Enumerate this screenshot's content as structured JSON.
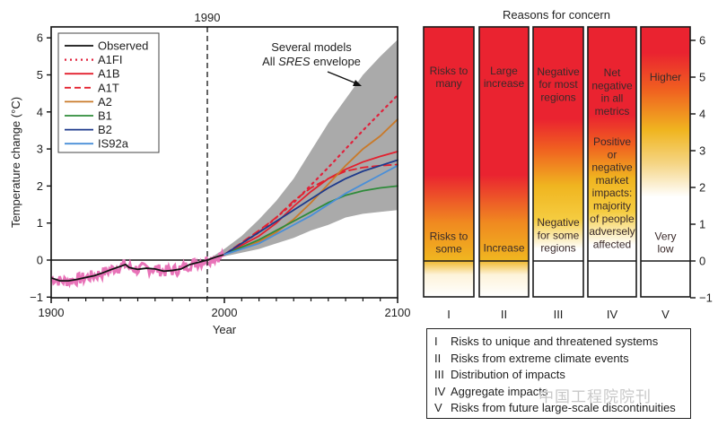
{
  "chart_data": [
    {
      "type": "line",
      "title": "",
      "xlabel": "Year",
      "ylabel": "Temperature change (°C)",
      "xlim": [
        1900,
        2100
      ],
      "ylim": [
        -1,
        6.3
      ],
      "x_ticks": [
        1900,
        2000,
        2100
      ],
      "y_ticks": [
        -1,
        0,
        1,
        2,
        3,
        4,
        5,
        6
      ],
      "y_tick_labels": [
        "−1",
        "0",
        "1",
        "2",
        "3",
        "4",
        "5",
        "6"
      ],
      "grid": false,
      "legend_position": "top-left",
      "reference_line": {
        "x": 1990,
        "label": "1990",
        "style": "dashed"
      },
      "annotation": {
        "line1": "Several models",
        "line2_prefix": "All ",
        "line2_italic": "SRES",
        "line2_suffix": " envelope"
      },
      "envelope": {
        "name": "Several models All SRES envelope",
        "color": "#aaaaaa",
        "x": [
          1990,
          2000,
          2010,
          2020,
          2030,
          2040,
          2050,
          2060,
          2070,
          2080,
          2090,
          2100
        ],
        "upper": [
          0.0,
          0.3,
          0.65,
          1.1,
          1.6,
          2.2,
          2.95,
          3.7,
          4.35,
          5.0,
          5.5,
          5.95
        ],
        "lower": [
          0.0,
          0.1,
          0.2,
          0.3,
          0.45,
          0.6,
          0.8,
          0.95,
          1.15,
          1.25,
          1.3,
          1.35
        ]
      },
      "observed": {
        "name": "Observed",
        "color": "#111111",
        "annual_color": "#e873b8",
        "x": [
          1900,
          1905,
          1910,
          1915,
          1920,
          1925,
          1930,
          1935,
          1940,
          1943,
          1945,
          1950,
          1955,
          1960,
          1965,
          1970,
          1975,
          1980,
          1985,
          1990,
          1995,
          2000
        ],
        "y": [
          -0.48,
          -0.56,
          -0.56,
          -0.52,
          -0.47,
          -0.42,
          -0.34,
          -0.25,
          -0.17,
          -0.12,
          -0.2,
          -0.25,
          -0.22,
          -0.24,
          -0.3,
          -0.28,
          -0.24,
          -0.12,
          -0.06,
          0.0,
          0.08,
          0.15
        ]
      },
      "series": [
        {
          "name": "A1FI",
          "color": "#e0223c",
          "style": "dotted",
          "x": [
            2000,
            2020,
            2040,
            2060,
            2080,
            2100
          ],
          "y": [
            0.15,
            0.75,
            1.55,
            2.5,
            3.5,
            4.45
          ]
        },
        {
          "name": "A1B",
          "color": "#e3202e",
          "style": "solid",
          "x": [
            2000,
            2020,
            2030,
            2040,
            2050,
            2060,
            2070,
            2080,
            2090,
            2100
          ],
          "y": [
            0.15,
            0.65,
            1.0,
            1.45,
            1.85,
            2.2,
            2.45,
            2.65,
            2.8,
            2.93
          ]
        },
        {
          "name": "A1T",
          "color": "#e3202e",
          "style": "dashed",
          "x": [
            2000,
            2020,
            2030,
            2040,
            2050,
            2060,
            2070,
            2080,
            2090,
            2100
          ],
          "y": [
            0.15,
            0.8,
            1.15,
            1.6,
            1.95,
            2.2,
            2.4,
            2.5,
            2.55,
            2.58
          ]
        },
        {
          "name": "A2",
          "color": "#c97a2a",
          "style": "solid",
          "x": [
            2000,
            2020,
            2030,
            2040,
            2050,
            2060,
            2070,
            2080,
            2090,
            2100
          ],
          "y": [
            0.15,
            0.5,
            0.75,
            1.1,
            1.55,
            2.05,
            2.55,
            3.0,
            3.35,
            3.8
          ]
        },
        {
          "name": "B1",
          "color": "#2e8b3a",
          "style": "solid",
          "x": [
            2000,
            2020,
            2030,
            2040,
            2050,
            2060,
            2070,
            2080,
            2090,
            2100
          ],
          "y": [
            0.15,
            0.55,
            0.8,
            1.05,
            1.3,
            1.55,
            1.75,
            1.87,
            1.95,
            2.0
          ]
        },
        {
          "name": "B2",
          "color": "#1e3a8c",
          "style": "solid",
          "x": [
            2000,
            2020,
            2030,
            2040,
            2050,
            2060,
            2070,
            2080,
            2090,
            2100
          ],
          "y": [
            0.15,
            0.75,
            1.05,
            1.35,
            1.65,
            1.95,
            2.2,
            2.4,
            2.55,
            2.7
          ]
        },
        {
          "name": "IS92a",
          "color": "#4a8fd8",
          "style": "solid",
          "x": [
            2000,
            2020,
            2030,
            2040,
            2050,
            2060,
            2070,
            2080,
            2090,
            2100
          ],
          "y": [
            0.15,
            0.45,
            0.7,
            0.95,
            1.2,
            1.5,
            1.8,
            2.05,
            2.3,
            2.55
          ]
        }
      ]
    },
    {
      "type": "heatmap",
      "title": "Reasons for concern",
      "ylim": [
        -1,
        6.3
      ],
      "y_ticks": [
        -1,
        0,
        1,
        2,
        3,
        4,
        5,
        6
      ],
      "y_tick_labels": [
        "−1",
        "0",
        "1",
        "2",
        "3",
        "4",
        "5",
        "6"
      ],
      "categories": [
        "I",
        "II",
        "III",
        "IV",
        "V"
      ],
      "color_scale": {
        "low": "#ffffff",
        "mid": "#f0b520",
        "high": "#ea2330"
      },
      "bars": [
        {
          "category": "I",
          "gradient": [
            {
              "t": -1,
              "c": "#ffffff"
            },
            {
              "t": -0.4,
              "c": "#fdf3da"
            },
            {
              "t": 0,
              "c": "#f0b520"
            },
            {
              "t": 1,
              "c": "#f08a20"
            },
            {
              "t": 2.3,
              "c": "#ea2330"
            },
            {
              "t": 6.3,
              "c": "#ea2330"
            }
          ],
          "labels": [
            {
              "text": "Risks to\nmany",
              "y": 5
            },
            {
              "text": "Risks to\nsome",
              "y": 0.5
            }
          ]
        },
        {
          "category": "II",
          "gradient": [
            {
              "t": -1,
              "c": "#ffffff"
            },
            {
              "t": -0.4,
              "c": "#fdf3da"
            },
            {
              "t": 0,
              "c": "#f0b520"
            },
            {
              "t": 1,
              "c": "#f08a20"
            },
            {
              "t": 2.3,
              "c": "#ea2330"
            },
            {
              "t": 6.3,
              "c": "#ea2330"
            }
          ],
          "labels": [
            {
              "text": "Large\nincrease",
              "y": 5
            },
            {
              "text": "Increase",
              "y": 0.35
            }
          ]
        },
        {
          "category": "III",
          "gradient": [
            {
              "t": -1,
              "c": "#ffffff"
            },
            {
              "t": 0.3,
              "c": "#ffffff"
            },
            {
              "t": 1.1,
              "c": "#f5cc40"
            },
            {
              "t": 2.0,
              "c": "#f0b520"
            },
            {
              "t": 3.0,
              "c": "#f06020"
            },
            {
              "t": 3.8,
              "c": "#ea2330"
            },
            {
              "t": 6.3,
              "c": "#ea2330"
            }
          ],
          "labels": [
            {
              "text": "Negative\nfor most\nregions",
              "y": 4.8
            },
            {
              "text": "Negative\nfor some\nregions",
              "y": 0.7
            }
          ]
        },
        {
          "category": "IV",
          "gradient": [
            {
              "t": -1,
              "c": "#ffffff"
            },
            {
              "t": 0.4,
              "c": "#ffffff"
            },
            {
              "t": 1.3,
              "c": "#f5cc40"
            },
            {
              "t": 2.2,
              "c": "#f0b520"
            },
            {
              "t": 3.1,
              "c": "#f06020"
            },
            {
              "t": 3.9,
              "c": "#ea2330"
            },
            {
              "t": 6.3,
              "c": "#ea2330"
            }
          ],
          "labels": [
            {
              "text": "Net\nnegative\nin all\nmetrics",
              "y": 4.6
            },
            {
              "text": "Positive\nor\nnegative\nmarket\nimpacts:\nmajority\nof people\nadversely\naffected",
              "y": 1.85
            }
          ]
        },
        {
          "category": "V",
          "gradient": [
            {
              "t": -1,
              "c": "#ffffff"
            },
            {
              "t": 1.7,
              "c": "#ffffff"
            },
            {
              "t": 2.6,
              "c": "#f5d585"
            },
            {
              "t": 3.5,
              "c": "#f0b520"
            },
            {
              "t": 4.6,
              "c": "#f06020"
            },
            {
              "t": 5.6,
              "c": "#ea2330"
            },
            {
              "t": 6.3,
              "c": "#ea2330"
            }
          ],
          "labels": [
            {
              "text": "Higher",
              "y": 5
            },
            {
              "text": "Very\nlow",
              "y": 0.5
            }
          ]
        }
      ],
      "legend": [
        {
          "num": "I",
          "text": "Risks to unique and threatened systems"
        },
        {
          "num": "II",
          "text": "Risks from extreme climate events"
        },
        {
          "num": "III",
          "text": "Distribution of impacts"
        },
        {
          "num": "IV",
          "text": "Aggregate impacts"
        },
        {
          "num": "V",
          "text": "Risks from future large-scale discontinuities"
        }
      ]
    }
  ],
  "watermark": "中国工程院院刊"
}
